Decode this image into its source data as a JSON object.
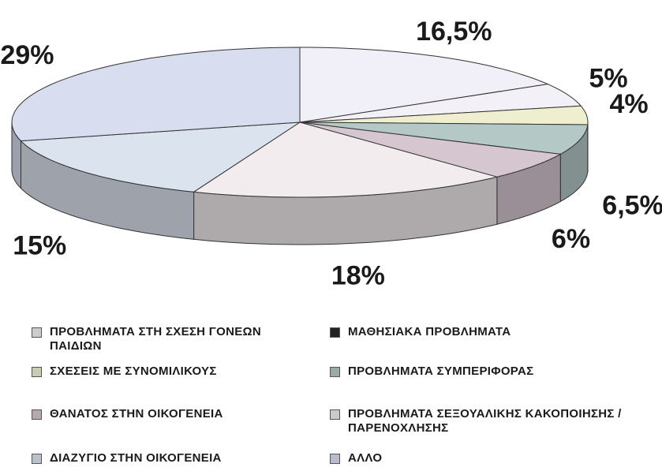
{
  "chart_data": {
    "type": "pie3d",
    "categories": [
      "ΠΡΟΒΛΗΜΑΤΑ ΣΤΗ ΣΧΕΣΗ ΓΟΝΕΩΝ ΠΑΙΔΙΩΝ",
      "ΜΑΘΗΣΙΑΚΑ ΠΡΟΒΛΗΜΑΤΑ",
      "ΣΧΕΣΕΙΣ ΜΕ ΣΥΝΟΜΙΛΙΚΟΥΣ",
      "ΠΡΟΒΛΗΜΑΤΑ ΣΥΜΠΕΡΙΦΟΡΑΣ",
      "ΘΑΝΑΤΟΣ ΣΤΗΝ ΟΙΚΟΓΕΝΕΙΑ",
      "ΠΡΟΒΛΗΜΑΤΑ ΣΕΞΟΥΑΛΙΚΗΣ ΚΑΚΟΠΟΙΗΣΗΣ / ΠΑΡΕΝΟΧΛΗΣΗΣ",
      "ΔΙΑΖΥΓΙΟ ΣΤΗΝ ΟΙΚΟΓΕΝΕΙΑ",
      "ΑΛΛΟ"
    ],
    "values": [
      16.5,
      5,
      4,
      6.5,
      6,
      18,
      15,
      29
    ],
    "value_labels": [
      "16,5%",
      "5%",
      "4%",
      "6,5%",
      "6%",
      "18%",
      "15%",
      "29%"
    ],
    "colors": [
      "#f1eff7",
      "#f3f1f7",
      "#efefcf",
      "#b4c8c6",
      "#d6c6d0",
      "#f2ecee",
      "#dbe3ee",
      "#d9ddf0"
    ]
  }
}
